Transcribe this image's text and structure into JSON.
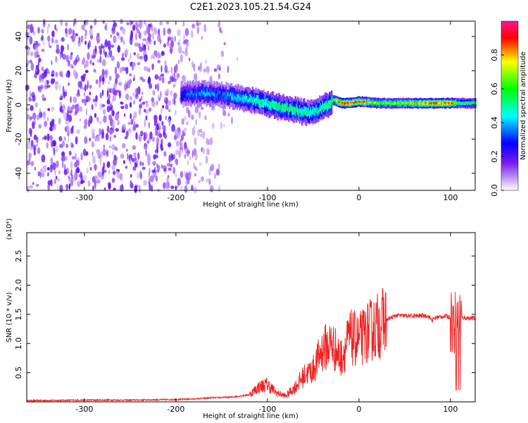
{
  "chart_data": [
    {
      "type": "heatmap",
      "title": "C2E1.2023.105.21.54.G24",
      "xlabel": "Height of straight line (km)",
      "ylabel": "Frequency (Hz)",
      "xlim": [
        -363,
        127
      ],
      "ylim": [
        -50,
        49
      ],
      "x_ticks": [
        -300,
        -200,
        -100,
        0,
        100
      ],
      "y_ticks": [
        -40,
        -20,
        0,
        20,
        40
      ],
      "colorbar": {
        "label": "Normalized spectral amplitude",
        "range": [
          0,
          1
        ],
        "ticks": [
          0.0,
          0.2,
          0.4,
          0.6,
          0.8
        ],
        "colors": [
          "#ffffff",
          "#8a2be2",
          "#0000ff",
          "#00ffff",
          "#00ff00",
          "#ffff00",
          "#ff0000",
          "#ff1493"
        ]
      },
      "ridge": {
        "name": "",
        "x": [
          -195,
          -170,
          -150,
          -130,
          -110,
          -90,
          -70,
          -55,
          -45,
          -35,
          -28,
          -20,
          -10,
          0,
          20,
          50,
          80,
          100,
          110,
          127
        ],
        "y": [
          6,
          7,
          6,
          4,
          2,
          -1,
          -3,
          -5,
          -3,
          0,
          3,
          1,
          1,
          2,
          1,
          1,
          1,
          1,
          1,
          1
        ],
        "amplitude": [
          0.3,
          0.4,
          0.35,
          0.45,
          0.5,
          0.55,
          0.55,
          0.5,
          0.5,
          0.55,
          0.6,
          0.95,
          0.9,
          0.85,
          0.65,
          0.7,
          0.85,
          0.9,
          0.5,
          0.6
        ]
      },
      "grid": false
    },
    {
      "type": "line",
      "xlabel": "Height of straight line (km)",
      "ylabel": "SNR (10 * v/v)",
      "y_multiplier": "(x10⁴)",
      "xlim": [
        -363,
        127
      ],
      "ylim": [
        0,
        2.9
      ],
      "x_ticks": [
        -300,
        -200,
        -100,
        0,
        100
      ],
      "y_ticks": [
        0.5,
        1.0,
        1.5,
        2.0,
        2.5
      ],
      "series": [
        {
          "name": "",
          "color": "#ee2222",
          "x": [
            -363,
            -300,
            -250,
            -200,
            -180,
            -160,
            -140,
            -120,
            -110,
            -100,
            -90,
            -80,
            -70,
            -60,
            -50,
            -40,
            -30,
            -20,
            -10,
            0,
            10,
            20,
            30,
            40,
            60,
            75,
            80,
            85,
            95,
            100,
            105,
            108,
            110,
            115,
            127
          ],
          "y": [
            0.02,
            0.03,
            0.03,
            0.04,
            0.05,
            0.07,
            0.08,
            0.12,
            0.25,
            0.3,
            0.15,
            0.1,
            0.25,
            0.45,
            0.55,
            0.9,
            1.0,
            0.75,
            1.1,
            1.05,
            1.2,
            1.3,
            1.4,
            1.48,
            1.47,
            1.48,
            1.4,
            1.45,
            1.47,
            1.45,
            1.3,
            1.5,
            1.45,
            1.44,
            1.43
          ]
        }
      ],
      "grid": false
    }
  ]
}
